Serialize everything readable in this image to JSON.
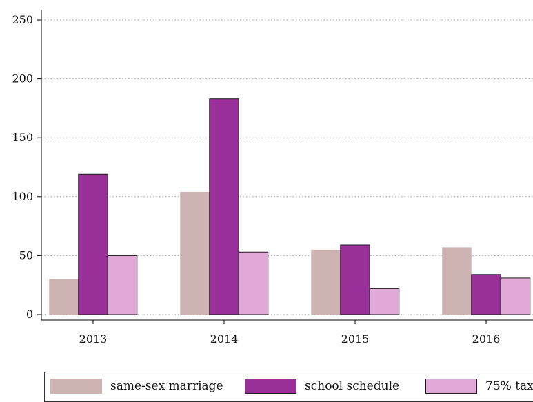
{
  "chart_data": {
    "type": "bar",
    "categories": [
      "2013",
      "2014",
      "2015",
      "2016"
    ],
    "series": [
      {
        "name": "same-sex marriage",
        "values": [
          30,
          104,
          55,
          57
        ],
        "color": "#cdb4b2"
      },
      {
        "name": "school schedule",
        "values": [
          119,
          183,
          59,
          34
        ],
        "color": "#99309a"
      },
      {
        "name": "75% tax",
        "values": [
          50,
          53,
          22,
          31
        ],
        "color": "#e2a9d8"
      }
    ],
    "yticks": [
      "0",
      "50",
      "100",
      "150",
      "200",
      "250"
    ],
    "ylim": [
      0,
      250
    ],
    "grid": true,
    "legend_position": "bottom",
    "title": "",
    "xlabel": "",
    "ylabel": ""
  }
}
